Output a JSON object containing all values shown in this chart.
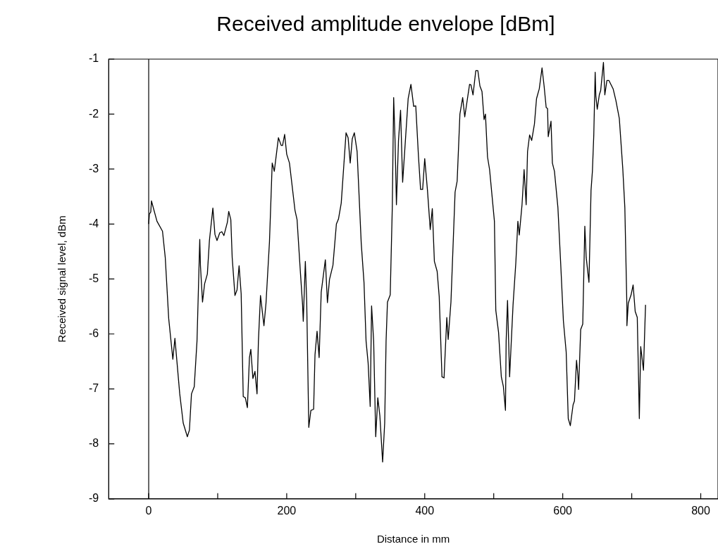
{
  "chart_data": {
    "type": "line",
    "title": "Received amplitude envelope [dBm]",
    "xlabel": "Distance in mm",
    "ylabel": "Received signal level, dBm",
    "xlim": [
      -58,
      825
    ],
    "ylim": [
      -9,
      -1
    ],
    "xticks": [
      0,
      {
        "value": 100,
        "label": null
      },
      200,
      {
        "value": 300,
        "label": null
      },
      400,
      {
        "value": 500,
        "label": null
      },
      600,
      {
        "value": 700,
        "label": null
      },
      800
    ],
    "yticks": [
      -9,
      -8,
      -7,
      -6,
      -5,
      -4,
      -3,
      -2,
      -1
    ],
    "grid": false,
    "legend": false,
    "marker": "none",
    "line_style": "solid",
    "ref_lines": [
      {
        "axis": "x",
        "value": 0,
        "color": "#000000"
      }
    ],
    "series": [
      {
        "color": "#000000",
        "x": [
          0,
          1,
          3,
          4,
          12,
          20,
          24,
          29,
          35,
          38,
          45,
          50,
          56,
          59,
          62,
          66,
          70,
          74,
          75,
          78,
          81,
          85,
          88,
          93,
          96,
          99,
          103,
          106,
          109,
          114,
          116,
          119,
          121,
          125,
          128,
          131,
          134,
          137,
          140,
          143,
          146,
          148,
          151,
          154,
          157,
          159,
          162,
          167,
          170,
          175,
          179,
          182,
          188,
          192,
          194,
          197,
          200,
          204,
          212,
          215,
          220,
          223,
          224,
          227,
          229,
          232,
          235,
          239,
          241,
          244,
          247,
          250,
          256,
          259,
          262,
          267,
          272,
          275,
          279,
          286,
          289,
          292,
          295,
          298,
          302,
          308,
          312,
          315,
          318,
          321,
          323,
          326,
          329,
          332,
          335,
          339,
          342,
          344,
          346,
          350,
          353,
          355,
          357,
          359,
          362,
          365,
          368,
          372,
          376,
          380,
          384,
          387,
          391,
          394,
          397,
          400,
          404,
          408,
          411,
          414,
          418,
          421,
          425,
          428,
          432,
          434,
          438,
          444,
          447,
          451,
          455,
          458,
          465,
          467,
          470,
          474,
          477,
          480,
          483,
          486,
          488,
          491,
          494,
          501,
          503,
          507,
          511,
          514,
          517,
          518,
          520,
          523,
          528,
          532,
          535,
          537,
          541,
          544,
          547,
          549,
          552,
          555,
          559,
          562,
          566,
          570,
          573,
          576,
          578,
          579,
          583,
          585,
          588,
          593,
          597,
          601,
          605,
          608,
          611,
          615,
          617,
          620,
          622,
          623,
          626,
          629,
          632,
          634,
          638,
          641,
          643,
          645,
          647,
          648,
          650,
          653,
          655,
          659,
          661,
          664,
          667,
          673,
          677,
          682,
          687,
          690,
          693,
          693,
          695,
          699,
          702,
          705,
          708,
          710,
          711,
          713,
          717,
          720
        ],
        "values": [
          -4.0,
          -3.82,
          -3.78,
          -3.58,
          -3.95,
          -4.13,
          -4.61,
          -5.72,
          -6.46,
          -6.08,
          -7.09,
          -7.62,
          -7.87,
          -7.75,
          -7.09,
          -6.96,
          -6.13,
          -4.28,
          -4.76,
          -5.42,
          -5.09,
          -4.91,
          -4.3,
          -3.71,
          -4.19,
          -4.3,
          -4.16,
          -4.14,
          -4.21,
          -3.97,
          -3.77,
          -3.92,
          -4.61,
          -5.3,
          -5.2,
          -4.76,
          -5.27,
          -7.14,
          -7.16,
          -7.34,
          -6.43,
          -6.28,
          -6.81,
          -6.68,
          -7.09,
          -6.13,
          -5.3,
          -5.85,
          -5.44,
          -4.33,
          -2.89,
          -3.04,
          -2.43,
          -2.57,
          -2.57,
          -2.37,
          -2.73,
          -2.89,
          -3.75,
          -3.92,
          -4.91,
          -5.47,
          -5.77,
          -4.68,
          -5.42,
          -7.7,
          -7.39,
          -7.37,
          -6.38,
          -5.95,
          -6.43,
          -5.24,
          -4.65,
          -5.43,
          -5.01,
          -4.75,
          -4.0,
          -3.91,
          -3.62,
          -2.34,
          -2.43,
          -2.89,
          -2.45,
          -2.34,
          -2.68,
          -4.35,
          -5.06,
          -6.13,
          -6.53,
          -7.32,
          -5.49,
          -6.13,
          -7.87,
          -7.16,
          -7.49,
          -8.33,
          -7.62,
          -6.13,
          -5.42,
          -5.29,
          -3.7,
          -1.7,
          -2.48,
          -3.65,
          -2.48,
          -1.93,
          -3.24,
          -2.48,
          -1.72,
          -1.46,
          -1.86,
          -1.85,
          -2.78,
          -3.37,
          -3.37,
          -2.81,
          -3.39,
          -4.1,
          -3.72,
          -4.68,
          -4.86,
          -5.32,
          -6.78,
          -6.8,
          -5.7,
          -6.1,
          -5.42,
          -3.42,
          -3.22,
          -2.0,
          -1.7,
          -2.05,
          -1.46,
          -1.47,
          -1.65,
          -1.21,
          -1.21,
          -1.49,
          -1.59,
          -2.1,
          -2.0,
          -2.78,
          -3.01,
          -3.95,
          -5.57,
          -5.97,
          -6.78,
          -6.96,
          -7.39,
          -6.13,
          -5.39,
          -6.78,
          -5.47,
          -4.71,
          -3.95,
          -4.2,
          -3.65,
          -3.01,
          -3.65,
          -2.68,
          -2.38,
          -2.48,
          -2.18,
          -1.72,
          -1.54,
          -1.16,
          -1.49,
          -1.88,
          -1.9,
          -2.41,
          -2.13,
          -2.89,
          -3.04,
          -3.7,
          -4.71,
          -5.77,
          -6.33,
          -7.54,
          -7.67,
          -7.29,
          -7.22,
          -6.48,
          -6.76,
          -7.01,
          -5.92,
          -5.82,
          -4.04,
          -4.61,
          -5.06,
          -3.39,
          -3.04,
          -2.38,
          -1.24,
          -1.67,
          -1.91,
          -1.65,
          -1.57,
          -1.06,
          -1.65,
          -1.39,
          -1.39,
          -1.54,
          -1.75,
          -2.08,
          -2.99,
          -3.7,
          -5.52,
          -5.85,
          -5.44,
          -5.29,
          -5.11,
          -5.59,
          -5.7,
          -6.89,
          -7.54,
          -6.23,
          -6.66,
          -5.47
        ]
      }
    ]
  }
}
